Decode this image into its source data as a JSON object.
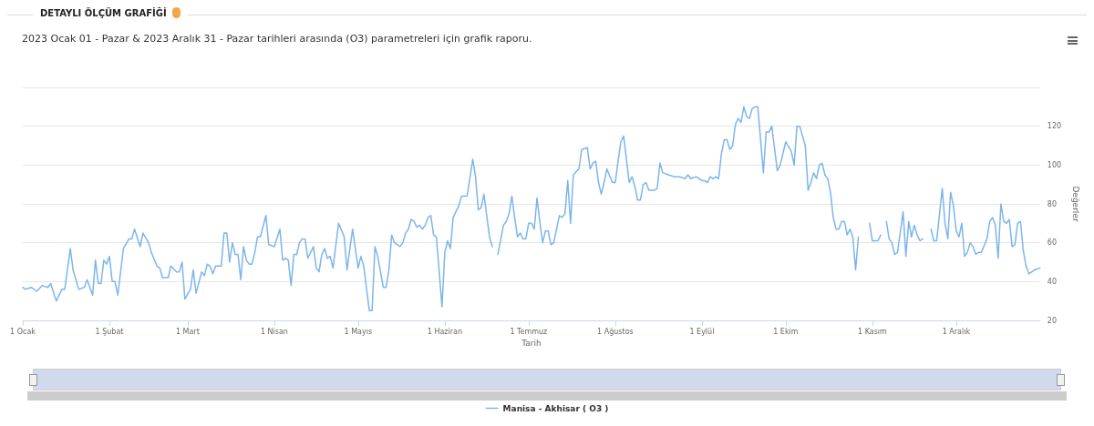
{
  "chart_data": {
    "type": "line",
    "title": "DETAYLI ÖLÇÜM GRAFİĞİ",
    "subtitle": "2023 Ocak 01 - Pazar & 2023 Aralık 31 - Pazar tarihleri arasında (O3) parametreleri için grafik raporu.",
    "xlabel": "Tarih",
    "ylabel": "Değerler",
    "x": [
      "2023-01-01",
      "2023-01-02",
      "2023-01-04",
      "2023-01-06",
      "2023-01-08",
      "2023-01-10",
      "2023-01-11",
      "2023-01-13",
      "2023-01-15",
      "2023-01-16",
      "2023-01-18",
      "2023-01-19",
      "2023-01-21",
      "2023-01-23",
      "2023-01-24",
      "2023-01-26",
      "2023-01-27",
      "2023-01-28",
      "2023-01-29",
      "2023-01-30",
      "2023-01-31",
      "2023-02-01",
      "2023-02-02",
      "2023-02-03",
      "2023-02-04",
      "2023-02-06",
      "2023-02-08",
      "2023-02-09",
      "2023-02-10",
      "2023-02-12",
      "2023-02-13",
      "2023-02-15",
      "2023-02-16",
      "2023-02-18",
      "2023-02-19",
      "2023-02-20",
      "2023-02-22",
      "2023-02-23",
      "2023-02-25",
      "2023-02-26",
      "2023-02-27",
      "2023-02-28",
      "2023-03-02",
      "2023-03-03",
      "2023-03-04",
      "2023-03-06",
      "2023-03-07",
      "2023-03-08",
      "2023-03-09",
      "2023-03-10",
      "2023-03-11",
      "2023-03-13",
      "2023-03-14",
      "2023-03-15",
      "2023-03-16",
      "2023-03-17",
      "2023-03-18",
      "2023-03-19",
      "2023-03-20",
      "2023-03-21",
      "2023-03-22",
      "2023-03-23",
      "2023-03-24",
      "2023-03-25",
      "2023-03-26",
      "2023-03-27",
      "2023-03-29",
      "2023-03-30",
      "2023-04-01",
      "2023-04-03",
      "2023-04-04",
      "2023-04-05",
      "2023-04-06",
      "2023-04-07",
      "2023-04-08",
      "2023-04-09",
      "2023-04-10",
      "2023-04-11",
      "2023-04-12",
      "2023-04-13",
      "2023-04-15",
      "2023-04-16",
      "2023-04-17",
      "2023-04-18",
      "2023-04-19",
      "2023-04-20",
      "2023-04-21",
      "2023-04-22",
      "2023-04-24",
      "2023-04-26",
      "2023-04-27",
      "2023-04-29",
      "2023-05-01",
      "2023-05-02",
      "2023-05-03",
      "2023-05-05",
      "2023-05-06",
      "2023-05-07",
      "2023-05-08",
      "2023-05-10",
      "2023-05-11",
      "2023-05-12",
      "2023-05-13",
      "2023-05-14",
      "2023-05-16",
      "2023-05-17",
      "2023-05-18",
      "2023-05-19",
      "2023-05-20",
      "2023-05-21",
      "2023-05-22",
      "2023-05-23",
      "2023-05-24",
      "2023-05-25",
      "2023-05-26",
      "2023-05-27",
      "2023-05-28",
      "2023-05-29",
      "2023-05-31",
      "2023-06-01",
      "2023-06-02",
      "2023-06-03",
      "2023-06-04",
      "2023-06-06",
      "2023-06-07",
      "2023-06-09",
      "2023-06-11",
      "2023-06-12",
      "2023-06-13",
      "2023-06-14",
      "2023-06-15",
      "2023-06-17",
      "2023-06-18",
      "2023-06-19",
      "2023-06-20",
      "2023-06-22",
      "2023-06-23",
      "2023-06-24",
      "2023-06-25",
      "2023-06-26",
      "2023-06-27",
      "2023-06-28",
      "2023-06-29",
      "2023-06-30",
      "2023-07-01",
      "2023-07-02",
      "2023-07-03",
      "2023-07-04",
      "2023-07-05",
      "2023-07-06",
      "2023-07-07",
      "2023-07-08",
      "2023-07-09",
      "2023-07-10",
      "2023-07-11",
      "2023-07-12",
      "2023-07-13",
      "2023-07-14",
      "2023-07-15",
      "2023-07-16",
      "2023-07-17",
      "2023-07-19",
      "2023-07-20",
      "2023-07-22",
      "2023-07-23",
      "2023-07-24",
      "2023-07-25",
      "2023-07-26",
      "2023-07-27",
      "2023-07-28",
      "2023-07-29",
      "2023-07-31",
      "2023-08-01",
      "2023-08-02",
      "2023-08-03",
      "2023-08-04",
      "2023-08-06",
      "2023-08-07",
      "2023-08-08",
      "2023-08-09",
      "2023-08-10",
      "2023-08-11",
      "2023-08-12",
      "2023-08-13",
      "2023-08-15",
      "2023-08-16",
      "2023-08-17",
      "2023-08-18",
      "2023-08-20",
      "2023-08-22",
      "2023-08-24",
      "2023-08-26",
      "2023-08-27",
      "2023-08-28",
      "2023-08-30",
      "2023-09-01",
      "2023-09-02",
      "2023-09-03",
      "2023-09-04",
      "2023-09-05",
      "2023-09-06",
      "2023-09-07",
      "2023-09-08",
      "2023-09-09",
      "2023-09-10",
      "2023-09-11",
      "2023-09-12",
      "2023-09-13",
      "2023-09-14",
      "2023-09-15",
      "2023-09-16",
      "2023-09-17",
      "2023-09-18",
      "2023-09-19",
      "2023-09-20",
      "2023-09-21",
      "2023-09-23",
      "2023-09-24",
      "2023-09-25",
      "2023-09-26",
      "2023-09-28",
      "2023-09-29",
      "2023-10-01",
      "2023-10-03",
      "2023-10-04",
      "2023-10-05",
      "2023-10-06",
      "2023-10-08",
      "2023-10-09",
      "2023-10-10",
      "2023-10-11",
      "2023-10-12",
      "2023-10-13",
      "2023-10-14",
      "2023-10-15",
      "2023-10-16",
      "2023-10-17",
      "2023-10-18",
      "2023-10-19",
      "2023-10-20",
      "2023-10-21",
      "2023-10-22",
      "2023-10-23",
      "2023-10-24",
      "2023-10-25",
      "2023-10-26",
      "2023-10-27",
      "2023-10-29",
      "2023-10-31",
      "2023-11-01",
      "2023-11-03",
      "2023-11-04",
      "2023-11-05",
      "2023-11-06",
      "2023-11-07",
      "2023-11-08",
      "2023-11-09",
      "2023-11-10",
      "2023-11-12",
      "2023-11-13",
      "2023-11-14",
      "2023-11-15",
      "2023-11-16",
      "2023-11-17",
      "2023-11-18",
      "2023-11-19",
      "2023-11-20",
      "2023-11-22",
      "2023-11-23",
      "2023-11-24",
      "2023-11-26",
      "2023-11-27",
      "2023-11-28",
      "2023-11-29",
      "2023-11-30",
      "2023-12-01",
      "2023-12-02",
      "2023-12-03",
      "2023-12-04",
      "2023-12-05",
      "2023-12-06",
      "2023-12-07",
      "2023-12-08",
      "2023-12-09",
      "2023-12-10",
      "2023-12-12",
      "2023-12-13",
      "2023-12-14",
      "2023-12-15",
      "2023-12-16",
      "2023-12-17",
      "2023-12-18",
      "2023-12-19",
      "2023-12-20",
      "2023-12-21",
      "2023-12-22",
      "2023-12-23",
      "2023-12-24",
      "2023-12-25",
      "2023-12-26",
      "2023-12-27",
      "2023-12-29",
      "2023-12-31"
    ],
    "series": [
      {
        "name": "Manisa - Akhisar ( O3 )",
        "color": "#7cb5ec",
        "values": [
          37,
          36,
          37,
          35,
          38,
          37,
          39,
          30,
          36,
          36,
          57,
          46,
          36,
          37,
          41,
          33,
          51,
          39,
          39,
          51,
          49,
          53,
          40,
          40,
          33,
          57,
          62,
          62,
          67,
          58,
          65,
          60,
          55,
          48,
          47,
          42,
          42,
          48,
          45,
          45,
          50,
          31,
          36,
          46,
          34,
          45,
          43,
          49,
          48,
          44,
          48,
          48,
          65,
          65,
          50,
          60,
          54,
          54,
          41,
          58,
          51,
          49,
          49,
          55,
          63,
          63,
          74,
          59,
          58,
          67,
          51,
          52,
          51,
          38,
          54,
          54,
          60,
          62,
          62,
          52,
          58,
          47,
          45,
          54,
          57,
          52,
          53,
          47,
          70,
          63,
          46,
          67,
          47,
          53,
          48,
          25,
          25,
          58,
          53,
          37,
          37,
          46,
          64,
          60,
          58,
          60,
          65,
          67,
          72,
          71,
          68,
          69,
          67,
          69,
          73,
          74,
          64,
          63,
          27,
          55,
          61,
          57,
          73,
          79,
          84,
          84,
          103,
          94,
          77,
          78,
          85,
          63,
          58,
          null,
          54,
          69,
          71,
          75,
          84,
          73,
          63,
          65,
          62,
          62,
          70,
          70,
          67,
          83,
          71,
          60,
          66,
          66,
          59,
          60,
          67,
          74,
          73,
          75,
          92,
          70,
          95,
          98,
          108,
          109,
          98,
          101,
          102,
          91,
          85,
          91,
          98,
          91,
          91,
          102,
          112,
          115,
          91,
          94,
          89,
          82,
          82,
          90,
          91,
          87,
          87,
          88,
          101,
          96,
          95,
          94,
          94,
          93,
          95,
          93,
          94,
          92,
          92,
          91,
          94,
          93,
          94,
          93,
          106,
          113,
          113,
          108,
          110,
          121,
          124,
          122,
          130,
          125,
          124,
          129,
          130,
          130,
          96,
          117,
          117,
          120,
          97,
          100,
          112,
          107,
          100,
          120,
          120,
          110,
          87,
          91,
          96,
          93,
          100,
          101,
          95,
          93,
          86,
          73,
          67,
          67,
          71,
          71,
          64,
          67,
          63,
          46,
          63,
          null,
          70,
          61,
          61,
          64,
          null,
          71,
          62,
          60,
          54,
          55,
          76,
          53,
          71,
          63,
          69,
          64,
          61,
          62,
          null,
          67,
          61,
          61,
          88,
          70,
          62,
          86,
          79,
          66,
          63,
          70,
          53,
          55,
          60,
          58,
          54,
          55,
          55,
          62,
          71,
          73,
          69,
          52,
          80,
          71,
          70,
          72,
          58,
          59,
          70,
          71,
          56,
          48,
          44,
          46,
          47
        ]
      }
    ],
    "xlim": [
      "2023-01-01",
      "2023-12-31"
    ],
    "xticks": [
      {
        "value": "2023-01-01",
        "label": "1 Ocak"
      },
      {
        "value": "2023-02-01",
        "label": "1 Şubat"
      },
      {
        "value": "2023-03-01",
        "label": "1 Mart"
      },
      {
        "value": "2023-04-01",
        "label": "1 Nisan"
      },
      {
        "value": "2023-05-01",
        "label": "1 Mayıs"
      },
      {
        "value": "2023-06-01",
        "label": "1 Haziran"
      },
      {
        "value": "2023-07-01",
        "label": "1 Temmuz"
      },
      {
        "value": "2023-08-01",
        "label": "1 Ağustos"
      },
      {
        "value": "2023-09-01",
        "label": "1 Eylül"
      },
      {
        "value": "2023-10-01",
        "label": "1 Ekim"
      },
      {
        "value": "2023-11-01",
        "label": "1 Kasım"
      },
      {
        "value": "2023-12-01",
        "label": "1 Aralık"
      }
    ],
    "ylim": [
      20,
      140
    ],
    "yticks": [
      20,
      40,
      60,
      80,
      100,
      120,
      {
        "value": 140,
        "label": null
      }
    ],
    "grid": "y",
    "legend": "bottom",
    "marker": "none",
    "line_style": "solid"
  }
}
